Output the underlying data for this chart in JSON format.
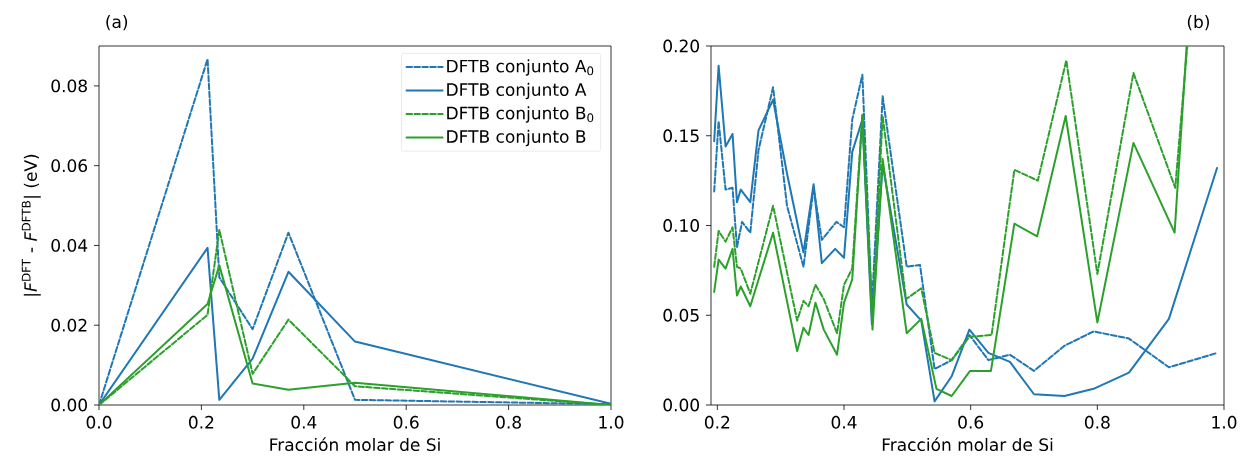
{
  "chart_data": [
    {
      "type": "line",
      "title": "(a)",
      "xlabel": "Fracción molar de Si",
      "ylabel": "|*F*$^{DFT}$ - *F*$^{DFTB}$| (eV)",
      "x": [
        0,
        0.212,
        0.235,
        0.3,
        0.37,
        0.5,
        1.0
      ],
      "series": [
        {
          "name": "DFTB conjunto A$_{0}$",
          "color": "#1f77b4",
          "line_style": "dashed",
          "values": [
            0,
            0.0867,
            0.032,
            0.019,
            0.0432,
            0.0013,
            0.0002
          ]
        },
        {
          "name": "DFTB conjunto A",
          "color": "#1f77b4",
          "line_style": "solid",
          "values": [
            0,
            0.0394,
            0.0013,
            0.0116,
            0.0334,
            0.0159,
            0.0003
          ]
        },
        {
          "name": "DFTB conjunto B$_{0}$",
          "color": "#2ca02c",
          "line_style": "dashed",
          "values": [
            0,
            0.0226,
            0.0439,
            0.0078,
            0.0214,
            0.0047,
            0
          ]
        },
        {
          "name": "DFTB conjunto B",
          "color": "#2ca02c",
          "line_style": "solid",
          "values": [
            0,
            0.0253,
            0.035,
            0.0054,
            0.0038,
            0.0056,
            0
          ]
        }
      ],
      "xlim": [
        0,
        1.0
      ],
      "ylim": [
        0,
        0.09
      ],
      "xticks": [
        {
          "value": 0,
          "label": "0.0"
        },
        {
          "value": 0.2,
          "label": "0.2"
        },
        {
          "value": 0.4,
          "label": "0.4"
        },
        {
          "value": 0.6,
          "label": "0.6"
        },
        {
          "value": 0.8,
          "label": "0.8"
        },
        {
          "value": 1.0,
          "label": "1.0"
        }
      ],
      "yticks": [
        {
          "value": 0,
          "label": "0.00"
        },
        {
          "value": 0.02,
          "label": "0.02"
        },
        {
          "value": 0.04,
          "label": "0.04"
        },
        {
          "value": 0.06,
          "label": "0.06"
        },
        {
          "value": 0.08,
          "label": "0.08"
        }
      ],
      "legend": "top right",
      "grid": false,
      "marker": "none"
    },
    {
      "type": "line",
      "title": "(b)",
      "xlabel": "Fracción molar de Si",
      "series": [
        {
          "color": "#1f77b4",
          "line_style": "dashed",
          "x": [
            0.195,
            0.202,
            0.213,
            0.224,
            0.231,
            0.239,
            0.252,
            0.265,
            0.288,
            0.31,
            0.336,
            0.352,
            0.365,
            0.388,
            0.4,
            0.413,
            0.429,
            0.444,
            0.461,
            0.499,
            0.52,
            0.543,
            0.57,
            0.598,
            0.628,
            0.662,
            0.7,
            0.748,
            0.794,
            0.85,
            0.913,
            0.989
          ],
          "values": [
            0.119,
            0.158,
            0.12,
            0.121,
            0.088,
            0.102,
            0.096,
            0.142,
            0.177,
            0.111,
            0.077,
            0.121,
            0.092,
            0.102,
            0.099,
            0.159,
            0.184,
            0.055,
            0.172,
            0.077,
            0.078,
            0.02,
            0.025,
            0.039,
            0.025,
            0.028,
            0.019,
            0.033,
            0.041,
            0.037,
            0.021,
            0.029
          ]
        },
        {
          "color": "#1f77b4",
          "line_style": "solid",
          "x": [
            0.195,
            0.202,
            0.213,
            0.224,
            0.231,
            0.237,
            0.252,
            0.265,
            0.288,
            0.31,
            0.336,
            0.352,
            0.365,
            0.386,
            0.4,
            0.413,
            0.429,
            0.444,
            0.461,
            0.499,
            0.522,
            0.543,
            0.57,
            0.598,
            0.628,
            0.662,
            0.7,
            0.748,
            0.794,
            0.85,
            0.913,
            0.989
          ],
          "values": [
            0.147,
            0.189,
            0.144,
            0.151,
            0.113,
            0.12,
            0.113,
            0.153,
            0.17,
            0.129,
            0.085,
            0.123,
            0.079,
            0.087,
            0.082,
            0.141,
            0.159,
            0.045,
            0.134,
            0.056,
            0.047,
            0.002,
            0.016,
            0.042,
            0.029,
            0.024,
            0.006,
            0.005,
            0.009,
            0.018,
            0.048,
            0.132
          ]
        },
        {
          "color": "#2ca02c",
          "line_style": "dashed",
          "x": [
            0.195,
            0.202,
            0.213,
            0.224,
            0.231,
            0.237,
            0.252,
            0.288,
            0.326,
            0.336,
            0.344,
            0.355,
            0.368,
            0.389,
            0.4,
            0.413,
            0.429,
            0.445,
            0.461,
            0.498,
            0.522,
            0.543,
            0.57,
            0.598,
            0.633,
            0.669,
            0.706,
            0.751,
            0.8,
            0.857,
            0.923,
            0.942
          ],
          "values": [
            0.077,
            0.097,
            0.091,
            0.099,
            0.077,
            0.076,
            0.062,
            0.111,
            0.047,
            0.058,
            0.055,
            0.067,
            0.059,
            0.04,
            0.067,
            0.076,
            0.162,
            0.047,
            0.161,
            0.059,
            0.065,
            0.029,
            0.025,
            0.038,
            0.039,
            0.131,
            0.125,
            0.192,
            0.073,
            0.185,
            0.121,
            0.2
          ]
        },
        {
          "color": "#2ca02c",
          "line_style": "solid",
          "x": [
            0.195,
            0.202,
            0.213,
            0.224,
            0.231,
            0.237,
            0.252,
            0.288,
            0.326,
            0.336,
            0.344,
            0.355,
            0.368,
            0.389,
            0.4,
            0.413,
            0.429,
            0.445,
            0.461,
            0.499,
            0.522,
            0.546,
            0.57,
            0.599,
            0.632,
            0.669,
            0.705,
            0.75,
            0.8,
            0.857,
            0.922,
            0.941
          ],
          "values": [
            0.063,
            0.081,
            0.076,
            0.087,
            0.061,
            0.066,
            0.055,
            0.096,
            0.03,
            0.043,
            0.039,
            0.057,
            0.042,
            0.028,
            0.057,
            0.07,
            0.161,
            0.042,
            0.137,
            0.04,
            0.048,
            0.009,
            0.005,
            0.019,
            0.019,
            0.101,
            0.094,
            0.161,
            0.046,
            0.146,
            0.096,
            0.2
          ]
        }
      ],
      "xlim": [
        0.19,
        1.0
      ],
      "ylim": [
        0,
        0.2
      ],
      "xticks": [
        {
          "value": 0.2,
          "label": "0.2"
        },
        {
          "value": 0.4,
          "label": "0.4"
        },
        {
          "value": 0.6,
          "label": "0.6"
        },
        {
          "value": 0.8,
          "label": "0.8"
        },
        {
          "value": 1.0,
          "label": "1.0"
        }
      ],
      "yticks": [
        {
          "value": 0,
          "label": "0.00"
        },
        {
          "value": 0.05,
          "label": "0.05"
        },
        {
          "value": 0.1,
          "label": "0.10"
        },
        {
          "value": 0.15,
          "label": "0.15"
        },
        {
          "value": 0.2,
          "label": "0.20"
        }
      ],
      "grid": false,
      "marker": "none"
    }
  ]
}
